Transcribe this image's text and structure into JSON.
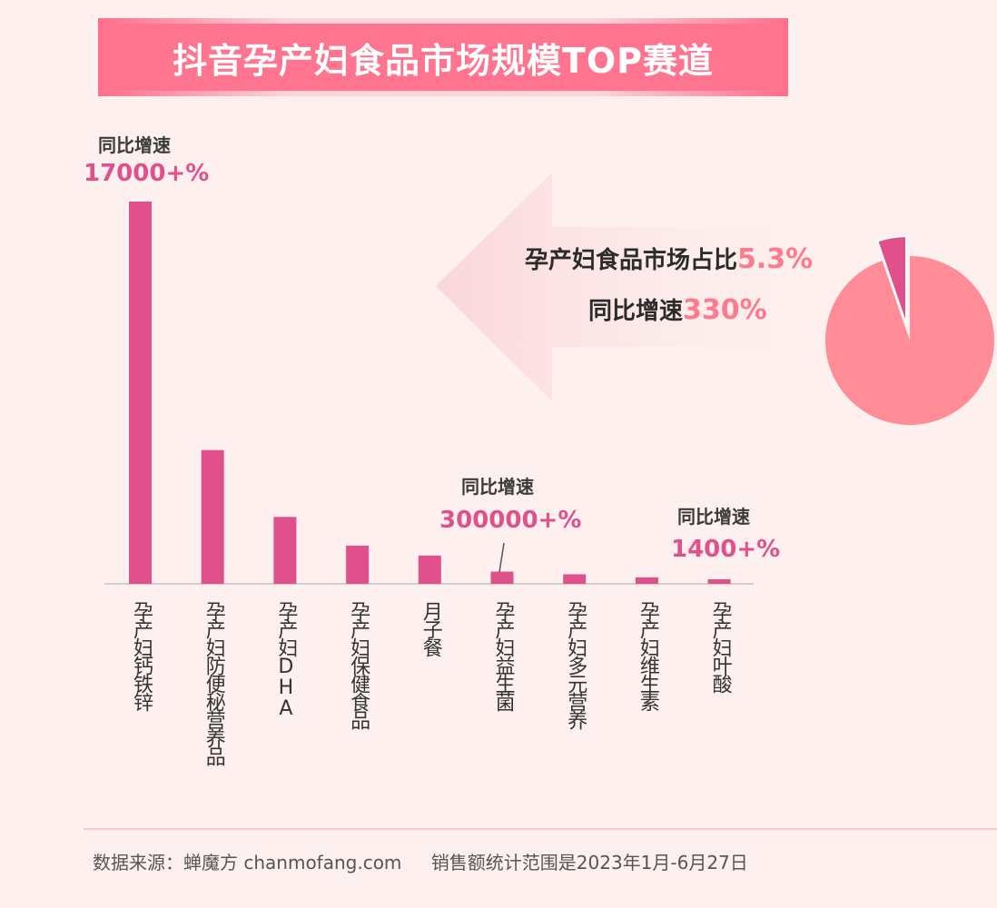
{
  "title": "抖音孕产妇食品市场规模TOP赛道",
  "chart_data": {
    "type": "bar",
    "categories": [
      "孕产妇钙铁锌",
      "孕产妇防便秘营养品",
      "孕产妇DHA",
      "孕产妇保健食品",
      "月子餐",
      "孕产妇益生菌",
      "孕产妇多元营养",
      "孕产妇维生素",
      "孕产妇叶酸"
    ],
    "values": [
      100,
      35,
      17.5,
      10,
      7.4,
      3.2,
      2.5,
      1.7,
      1.2
    ],
    "ylim": [
      0,
      100
    ],
    "annotations": [
      {
        "category": "孕产妇钙铁锌",
        "label": "同比增速",
        "value": "17000+%"
      },
      {
        "category": "孕产妇益生菌",
        "label": "同比增速",
        "value": "300000+%"
      },
      {
        "category": "孕产妇叶酸",
        "label": "同比增速",
        "value": "1400+%"
      }
    ],
    "bar_color": "#e0518c"
  },
  "pie": {
    "share_label": "孕产妇食品市场占比",
    "share_value": "5.3%",
    "growth_label": "同比增速",
    "growth_value": "330%",
    "share_fraction": 0.053,
    "main_color": "#ff8c96",
    "slice_color": "#e0518c"
  },
  "footer": {
    "source": "数据来源：蝉魔方 chanmofang.com",
    "range": "销售额统计范围是2023年1月-6月27日"
  }
}
